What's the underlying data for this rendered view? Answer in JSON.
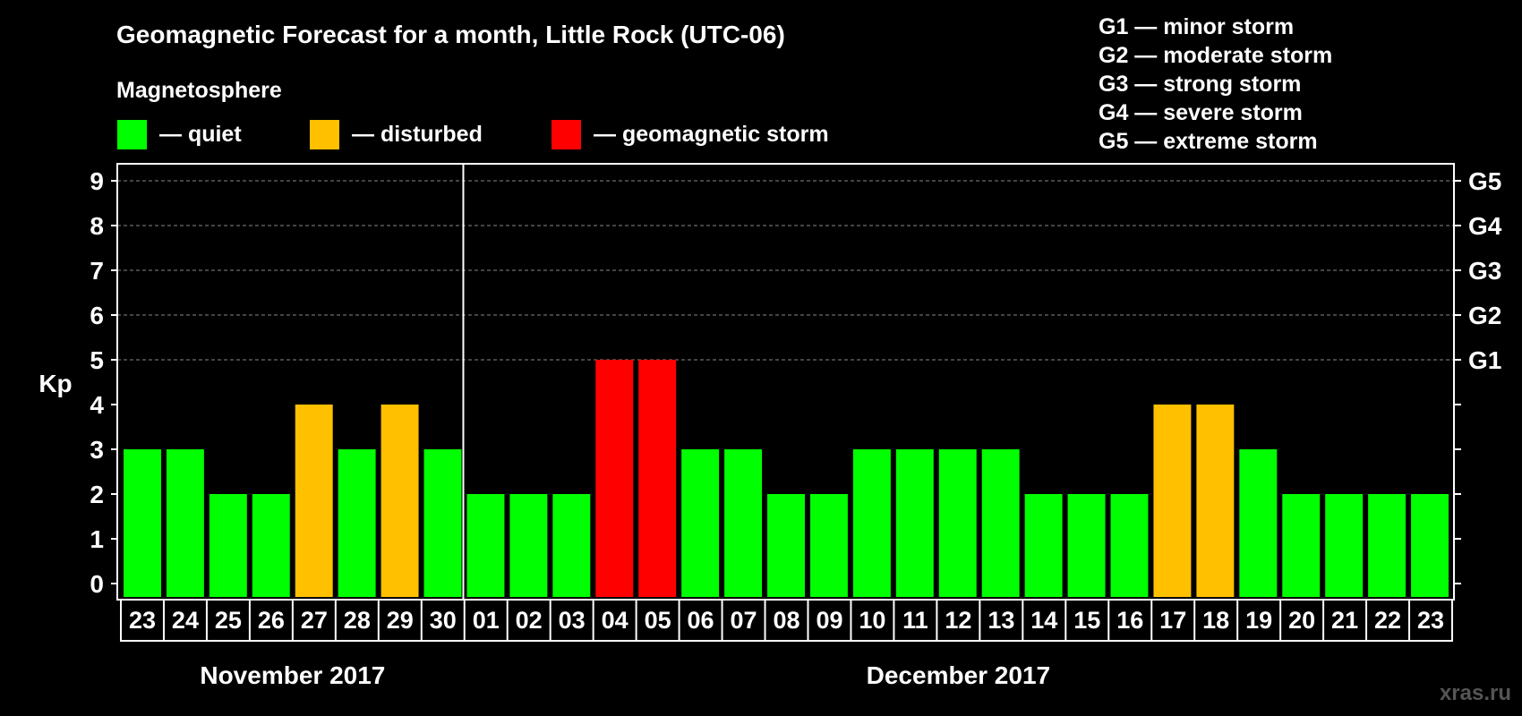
{
  "chart_data": {
    "type": "bar",
    "title": "Geomagnetic Forecast for a month, Little Rock (UTC-06)",
    "ylabel": "Kp",
    "ylim": [
      0,
      9
    ],
    "yticks": [
      "0",
      "1",
      "2",
      "3",
      "4",
      "5",
      "6",
      "7",
      "8",
      "9"
    ],
    "grid": "dashed-horizontal",
    "right_axis_labels": [
      {
        "kp": 5,
        "label": "G1"
      },
      {
        "kp": 6,
        "label": "G2"
      },
      {
        "kp": 7,
        "label": "G3"
      },
      {
        "kp": 8,
        "label": "G4"
      },
      {
        "kp": 9,
        "label": "G5"
      }
    ],
    "categories": [
      "23",
      "24",
      "25",
      "26",
      "27",
      "28",
      "29",
      "30",
      "01",
      "02",
      "03",
      "04",
      "05",
      "06",
      "07",
      "08",
      "09",
      "10",
      "11",
      "12",
      "13",
      "14",
      "15",
      "16",
      "17",
      "18",
      "19",
      "20",
      "21",
      "22",
      "23"
    ],
    "values": [
      3,
      3,
      2,
      2,
      4,
      3,
      4,
      3,
      2,
      2,
      2,
      5,
      5,
      3,
      3,
      2,
      2,
      3,
      3,
      3,
      3,
      2,
      2,
      2,
      4,
      4,
      3,
      2,
      2,
      2,
      2
    ],
    "status": [
      "quiet",
      "quiet",
      "quiet",
      "quiet",
      "disturbed",
      "quiet",
      "disturbed",
      "quiet",
      "quiet",
      "quiet",
      "quiet",
      "storm",
      "storm",
      "quiet",
      "quiet",
      "quiet",
      "quiet",
      "quiet",
      "quiet",
      "quiet",
      "quiet",
      "quiet",
      "quiet",
      "quiet",
      "disturbed",
      "disturbed",
      "quiet",
      "quiet",
      "quiet",
      "quiet",
      "quiet"
    ],
    "months": [
      {
        "label": "November 2017",
        "start": 0,
        "end": 7
      },
      {
        "label": "December 2017",
        "start": 8,
        "end": 30
      }
    ],
    "legend": {
      "heading": "Magnetosphere",
      "items": [
        {
          "key": "quiet",
          "label": "— quiet",
          "color": "#00ff00"
        },
        {
          "key": "disturbed",
          "label": "— disturbed",
          "color": "#ffc000"
        },
        {
          "key": "storm",
          "label": "— geomagnetic storm",
          "color": "#ff0000"
        }
      ]
    },
    "storm_scale": [
      "G1 — minor storm",
      "G2 — moderate storm",
      "G3 — strong storm",
      "G4 — severe storm",
      "G5 — extreme storm"
    ]
  },
  "watermark": "xras.ru"
}
